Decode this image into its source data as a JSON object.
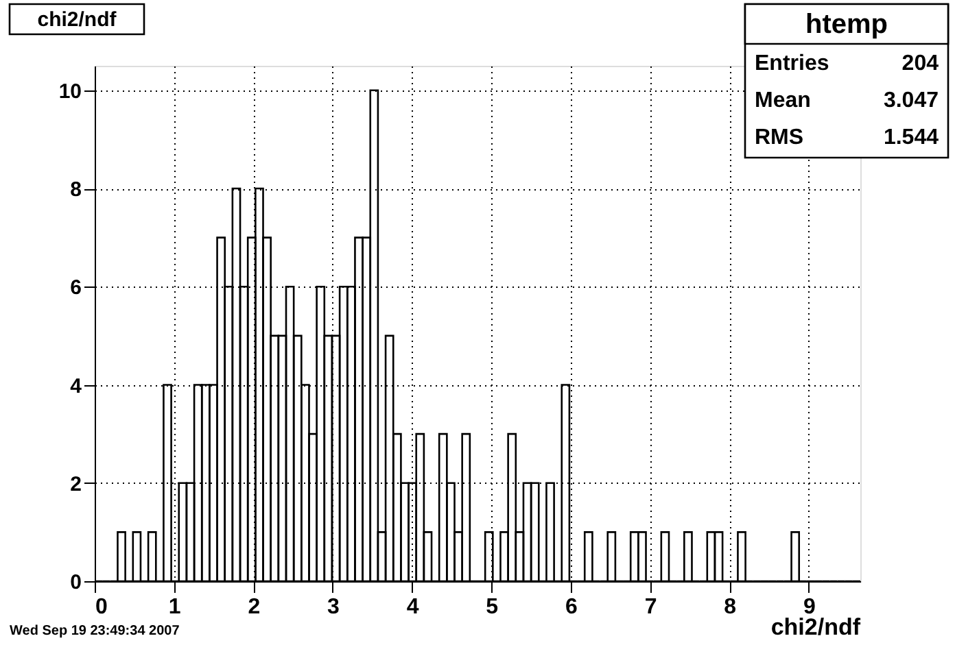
{
  "chart_data": {
    "type": "histogram",
    "title": "chi2/ndf",
    "xlabel": "chi2/ndf",
    "bins": [
      0,
      0.0965,
      0.193,
      0.2895,
      0.386,
      0.4825,
      0.579,
      0.6755,
      0.772,
      0.8685,
      0.965,
      1.0615,
      1.158,
      1.2545,
      1.351,
      1.4475,
      1.544,
      1.6405,
      1.737,
      1.8335,
      1.93,
      2.0265,
      2.123,
      2.2195,
      2.316,
      2.4125,
      2.509,
      2.6055,
      2.702,
      2.7985,
      2.895,
      2.9915,
      3.088,
      3.1845,
      3.281,
      3.3775,
      3.474,
      3.5705,
      3.667,
      3.7635,
      3.86,
      3.9565,
      4.053,
      4.1495,
      4.246,
      4.3425,
      4.439,
      4.5355,
      4.632,
      4.7285,
      4.825,
      4.9215,
      5.018,
      5.1145,
      5.211,
      5.3075,
      5.404,
      5.5005,
      5.597,
      5.6935,
      5.79,
      5.8865,
      5.983,
      6.0795,
      6.176,
      6.2725,
      6.369,
      6.4655,
      6.562,
      6.6585,
      6.755,
      6.8515,
      6.948,
      7.0445,
      7.141,
      7.2375,
      7.334,
      7.4305,
      7.527,
      7.6235,
      7.72,
      7.8165,
      7.913,
      8.0095,
      8.106,
      8.2025,
      8.299,
      8.3955,
      8.492,
      8.5885,
      8.685,
      8.7815,
      8.878,
      8.9745,
      9.071,
      9.1675,
      9.264,
      9.3605,
      9.457,
      9.5535,
      9.65
    ],
    "values": [
      0,
      0,
      0,
      1,
      0,
      1,
      0,
      1,
      0,
      4,
      0,
      2,
      2,
      4,
      4,
      4,
      7,
      6,
      8,
      6,
      7,
      8,
      7,
      5,
      5,
      6,
      5,
      4,
      3,
      6,
      5,
      5,
      6,
      6,
      7,
      7,
      10,
      1,
      5,
      3,
      2,
      2,
      3,
      1,
      0,
      3,
      2,
      1,
      3,
      0,
      0,
      1,
      0,
      1,
      3,
      1,
      2,
      2,
      0,
      2,
      0,
      4,
      0,
      0,
      1,
      0,
      0,
      1,
      0,
      0,
      1,
      1,
      0,
      0,
      1,
      0,
      0,
      1,
      0,
      0,
      1,
      1,
      0,
      0,
      1,
      0,
      0,
      0,
      0,
      0,
      0,
      1,
      0,
      0,
      0,
      0,
      0,
      0,
      0,
      0
    ],
    "color": "#000000",
    "xlim": [
      0,
      9.65
    ],
    "xticks": [
      0,
      1,
      2,
      3,
      4,
      5,
      6,
      7,
      8,
      9
    ],
    "ylim": [
      0,
      10.5
    ],
    "yticks": [
      0,
      2,
      4,
      6,
      8,
      10
    ],
    "grid": true,
    "annotations": [
      "htemp",
      "Entries 204",
      "Mean 3.047",
      "RMS 1.544",
      "Wed Sep 19 23:49:34 2007"
    ]
  }
}
